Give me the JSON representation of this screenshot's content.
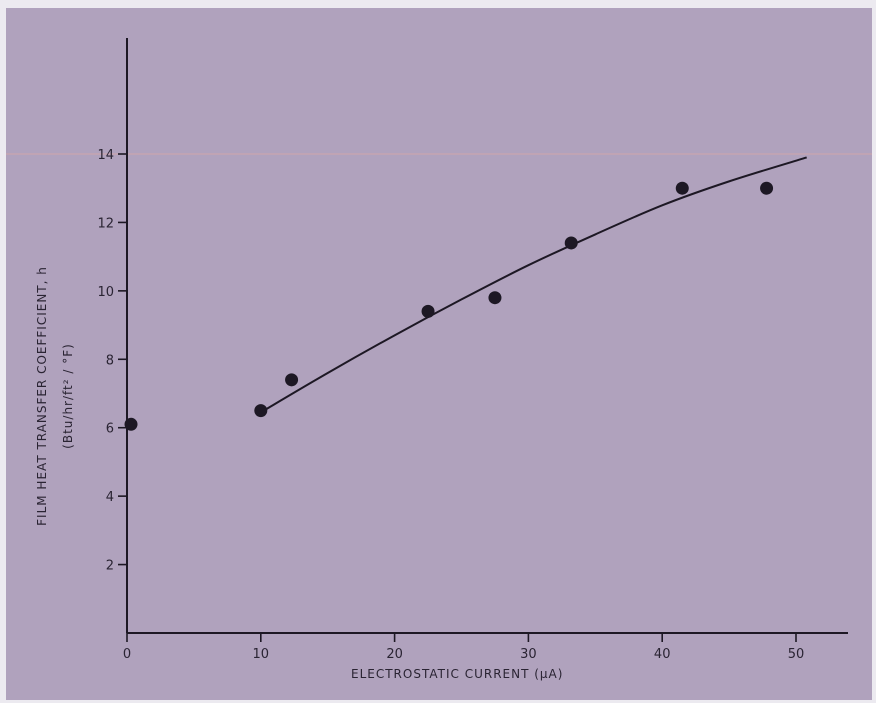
{
  "chart_data": {
    "type": "scatter",
    "title": "",
    "xlabel": "ELECTROSTATIC CURRENT (μA)",
    "ylabel": "FILM HEAT TRANSFER COEFFICIENT, h",
    "ylabel_units": "(Btu/hr/ft² / °F)",
    "xlim": [
      0,
      52
    ],
    "ylim": [
      0,
      17
    ],
    "x_ticks": [
      0,
      10,
      20,
      30,
      40,
      50
    ],
    "y_ticks": [
      2,
      4,
      6,
      8,
      10,
      12,
      14
    ],
    "grid": false,
    "colors": {
      "background": "#b0a2bd",
      "ink": "#1d1824",
      "guide_line": "#d8a6a6"
    },
    "series": [
      {
        "kind": "points",
        "x": [
          0.3,
          10,
          12.3,
          22.5,
          27.5,
          33.2,
          41.5,
          47.8
        ],
        "y": [
          6.1,
          6.5,
          7.4,
          9.4,
          9.8,
          11.4,
          13.0,
          13.0
        ]
      },
      {
        "kind": "fit-curve",
        "x": [
          10,
          15,
          20,
          25,
          30,
          35,
          40,
          45,
          50.8
        ],
        "y": [
          6.45,
          7.6,
          8.7,
          9.75,
          10.75,
          11.65,
          12.5,
          13.2,
          13.9
        ]
      }
    ]
  }
}
